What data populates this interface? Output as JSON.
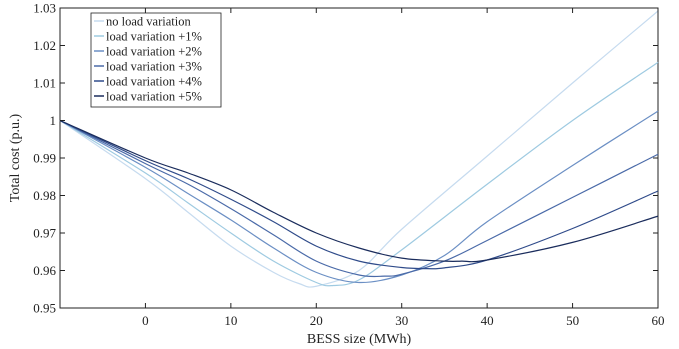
{
  "chart_data": {
    "type": "line",
    "xlabel": "BESS size (MWh)",
    "ylabel": "Total cost (p.u.)",
    "xlim": [
      -10,
      60
    ],
    "ylim": [
      0.95,
      1.03
    ],
    "xticks": [
      0,
      10,
      20,
      30,
      40,
      50,
      60
    ],
    "yticks": [
      0.95,
      0.96,
      0.97,
      0.98,
      0.99,
      1,
      1.01,
      1.02,
      1.03
    ],
    "xtick_labels": [
      "0",
      "10",
      "20",
      "30",
      "40",
      "50",
      "60"
    ],
    "ytick_labels": [
      "0.95",
      "0.96",
      "0.97",
      "0.98",
      "0.99",
      "1",
      "1.01",
      "1.02",
      "1.03"
    ],
    "grid": false,
    "legend_position": "top-left",
    "series": [
      {
        "name": "no load variation",
        "color": "#c6dbef",
        "x": [
          -10,
          0,
          5,
          10,
          15,
          18,
          20,
          25,
          30,
          40,
          50,
          60
        ],
        "y": [
          1.0,
          0.9845,
          0.9755,
          0.9665,
          0.9595,
          0.9565,
          0.9558,
          0.96,
          0.971,
          0.9905,
          1.01,
          1.0292
        ]
      },
      {
        "name": "load variation +1%",
        "color": "#9ecae1",
        "x": [
          -10,
          0,
          5,
          10,
          15,
          20,
          22,
          25,
          30,
          40,
          50,
          60
        ],
        "y": [
          1.0,
          0.986,
          0.978,
          0.97,
          0.9625,
          0.9568,
          0.956,
          0.9575,
          0.9655,
          0.983,
          1.0,
          1.0155
        ]
      },
      {
        "name": "load variation +2%",
        "color": "#6b8fc4",
        "x": [
          -10,
          0,
          5,
          10,
          15,
          20,
          25,
          30,
          35,
          40,
          50,
          60
        ],
        "y": [
          1.0,
          0.9875,
          0.9805,
          0.9735,
          0.966,
          0.9595,
          0.9568,
          0.9588,
          0.964,
          0.973,
          0.988,
          1.0025
        ]
      },
      {
        "name": "load variation +3%",
        "color": "#4a6aa8",
        "x": [
          -10,
          0,
          5,
          10,
          15,
          20,
          25,
          28,
          30,
          35,
          40,
          50,
          60
        ],
        "y": [
          1.0,
          0.9885,
          0.983,
          0.9765,
          0.9695,
          0.9625,
          0.9588,
          0.9585,
          0.959,
          0.9625,
          0.968,
          0.9795,
          0.991
        ]
      },
      {
        "name": "load variation +4%",
        "color": "#2f4b8a",
        "x": [
          -10,
          0,
          5,
          10,
          15,
          20,
          25,
          30,
          33,
          35,
          40,
          50,
          60
        ],
        "y": [
          1.0,
          0.9893,
          0.9845,
          0.979,
          0.973,
          0.9665,
          0.9625,
          0.9608,
          0.9605,
          0.9607,
          0.9628,
          0.9712,
          0.9812
        ]
      },
      {
        "name": "load variation +5%",
        "color": "#1a2c5c",
        "x": [
          -10,
          0,
          5,
          10,
          15,
          20,
          25,
          30,
          35,
          37,
          40,
          50,
          60
        ],
        "y": [
          1.0,
          0.99,
          0.986,
          0.9815,
          0.9755,
          0.97,
          0.966,
          0.9633,
          0.9625,
          0.9625,
          0.9628,
          0.9675,
          0.9745
        ]
      }
    ]
  }
}
